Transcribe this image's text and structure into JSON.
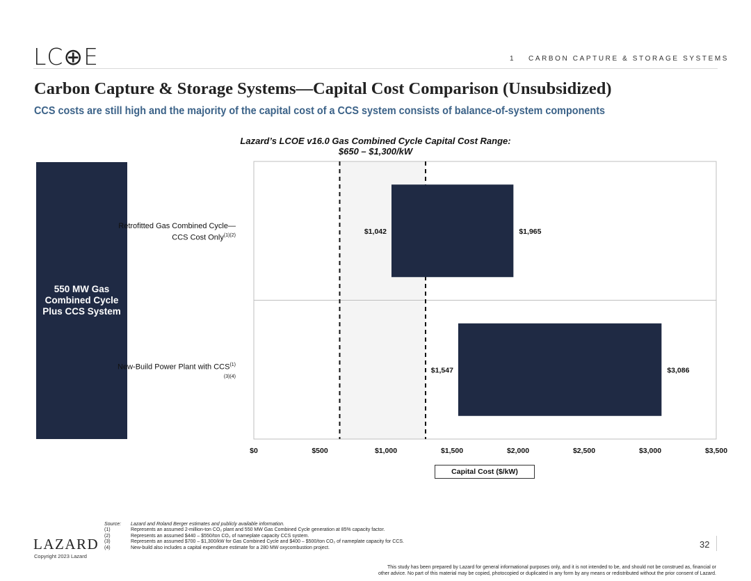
{
  "header": {
    "logo": "LC⊕E",
    "section_number": "1",
    "section_title": "CARBON CAPTURE & STORAGE SYSTEMS"
  },
  "title": "Carbon Capture & Storage Systems—Capital Cost Comparison (Unsubsidized)",
  "subtitle": "CCS costs are still high and the majority of the capital cost of a CCS system consists of balance-of-system components",
  "range_title_line1": "Lazard’s LCOE v16.0 Gas Combined Cycle Capital Cost Range:",
  "range_title_line2": "$650 – $1,300/kW",
  "side_label": "550 MW Gas Combined Cycle Plus CCS System",
  "categories": [
    {
      "label": "Retrofitted Gas Combined Cycle—CCS Cost Only",
      "sup": "(1)(2)"
    },
    {
      "label": "New-Build Power Plant with CCS",
      "sup": "(1)(3)(4)"
    }
  ],
  "xlabel": "Capital Cost ($/kW)",
  "chart_data": {
    "type": "bar",
    "orientation": "horizontal-floating",
    "categories": [
      "Retrofitted Gas Combined Cycle—CCS Cost Only",
      "New-Build Power Plant with CCS"
    ],
    "ranges": [
      {
        "low": 1042,
        "high": 1965,
        "low_label": "$1,042",
        "high_label": "$1,965"
      },
      {
        "low": 1547,
        "high": 3086,
        "low_label": "$1,547",
        "high_label": "$3,086"
      }
    ],
    "reference_range": {
      "low": 650,
      "high": 1300
    },
    "xlim": [
      0,
      3500
    ],
    "xticks": [
      0,
      500,
      1000,
      1500,
      2000,
      2500,
      3000,
      3500
    ],
    "xtick_labels": [
      "$0",
      "$500",
      "$1,000",
      "$1,500",
      "$2,000",
      "$2,500",
      "$3,000",
      "$3,500"
    ],
    "bar_color": "#1f2a44",
    "reference_color": "#f4f4f4"
  },
  "footnotes": [
    {
      "key": "Source:",
      "text": "Lazard and Roland Berger estimates and publicly available information."
    },
    {
      "key": "(1)",
      "text": "Represents an assumed 2-million-ton CO₂ plant and 550 MW Gas Combined Cycle generation at 85% capacity factor."
    },
    {
      "key": "(2)",
      "text": "Represents an assumed $440 – $550/ton CO₂ of nameplate capacity CCS system."
    },
    {
      "key": "(3)",
      "text": "Represents an assumed $700 – $1,300/kW for Gas Combined Cycle and $400 – $500/ton CO₂ of nameplate capacity for CCS."
    },
    {
      "key": "(4)",
      "text": "New-build also includes a capital expenditure estimate for a 280 MW oxycombustion project."
    }
  ],
  "footer": {
    "brand": "LAZARD",
    "copyright": "Copyright 2023 Lazard",
    "page_number": "32",
    "disclaimer_line1": "This study has been prepared by Lazard for general informational purposes only, and it is not intended to be, and should not be construed as, financial or",
    "disclaimer_line2": "other advice. No part of this material may be copied, photocopied or duplicated in any form by any means or redistributed without the prior consent of Lazard."
  }
}
